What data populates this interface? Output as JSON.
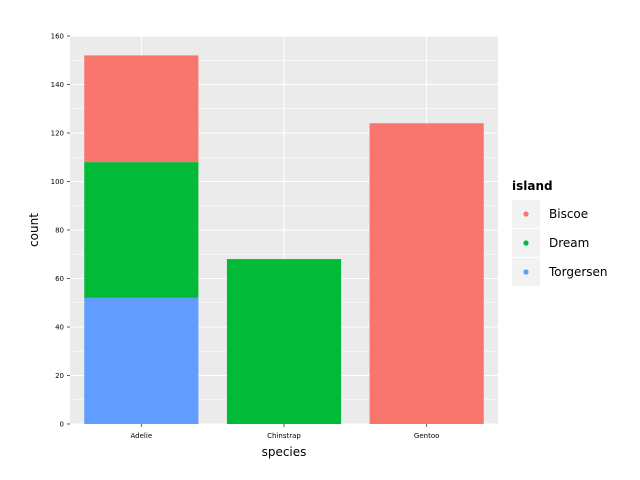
{
  "chart_data": {
    "type": "bar",
    "stacked": true,
    "xlabel": "species",
    "ylabel": "count",
    "ylim": [
      0,
      160
    ],
    "yticks": [
      0,
      20,
      40,
      60,
      80,
      100,
      120,
      140,
      160
    ],
    "categories": [
      "Adelie",
      "Chinstrap",
      "Gentoo"
    ],
    "series": [
      {
        "name": "Torgersen",
        "color": "#619CFF",
        "values": [
          52,
          0,
          0
        ]
      },
      {
        "name": "Dream",
        "color": "#00BA38",
        "values": [
          56,
          68,
          0
        ]
      },
      {
        "name": "Biscoe",
        "color": "#F8766D",
        "values": [
          44,
          0,
          124
        ]
      }
    ],
    "legend": {
      "title": "island",
      "placement": "right",
      "order": [
        "Biscoe",
        "Dream",
        "Torgersen"
      ]
    },
    "grid": true,
    "panel_background": "#EBEBEB",
    "grid_color": "#FFFFFF"
  }
}
